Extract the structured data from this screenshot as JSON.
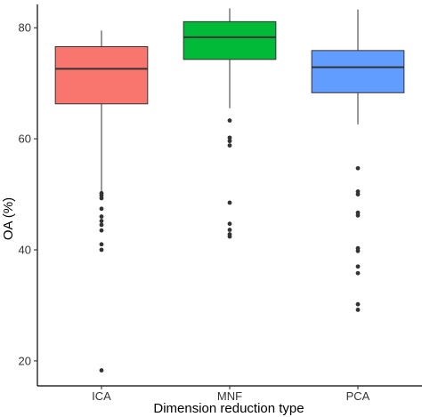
{
  "chart_data": {
    "type": "boxplot",
    "xlabel": "Dimension reduction type",
    "ylabel": "OA (%)",
    "ylim": [
      15.5,
      84.2
    ],
    "yticks": [
      20,
      40,
      60,
      80
    ],
    "grid": false,
    "legend": "none",
    "categories": [
      "ICA",
      "MNF",
      "PCA"
    ],
    "boxes": [
      {
        "category": "ICA",
        "color": "#F8766D",
        "whisker_low": 50.5,
        "q1": 66.3,
        "median": 72.6,
        "q3": 76.6,
        "whisker_high": 79.5,
        "outliers": [
          50.2,
          49.8,
          49.3,
          47.4,
          46.0,
          45.2,
          44.5,
          43.5,
          41.0,
          40.0,
          18.3
        ]
      },
      {
        "category": "MNF",
        "color": "#00BA38",
        "whisker_low": 65.5,
        "q1": 74.3,
        "median": 78.3,
        "q3": 81.1,
        "whisker_high": 83.5,
        "outliers": [
          63.3,
          60.2,
          59.6,
          58.8,
          48.5,
          44.7,
          43.6,
          42.8,
          42.4
        ]
      },
      {
        "category": "PCA",
        "color": "#619CFF",
        "whisker_low": 62.6,
        "q1": 68.3,
        "median": 72.9,
        "q3": 75.9,
        "whisker_high": 83.3,
        "outliers": [
          54.7,
          50.5,
          50.0,
          46.7,
          46.2,
          40.3,
          39.8,
          37.0,
          35.8,
          30.2,
          29.2
        ]
      }
    ]
  }
}
